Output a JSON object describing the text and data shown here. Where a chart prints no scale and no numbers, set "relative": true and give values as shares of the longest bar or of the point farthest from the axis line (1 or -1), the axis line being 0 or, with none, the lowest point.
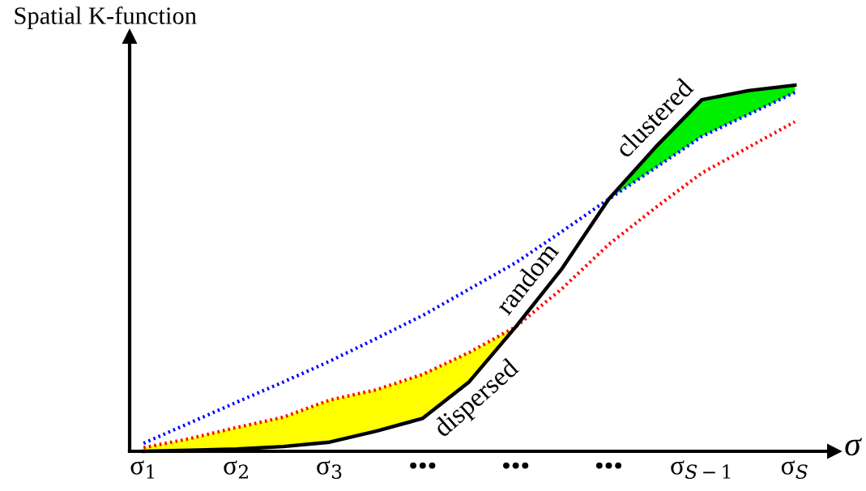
{
  "chart_data": {
    "type": "line",
    "relative": true,
    "ylabel": "Spatial K-function",
    "xlabel": "σ",
    "categories": [
      "σ$_{1}$",
      null,
      "σ$_{2}$",
      null,
      "σ$_{3}$",
      null,
      "•••",
      null,
      "•••",
      null,
      "•••",
      null,
      "σ$_{S−1}$",
      null,
      "σ$_{S}$"
    ],
    "grid": false,
    "legend": false,
    "series": [
      {
        "color": "#0000ff",
        "line_style": "dotted",
        "values": [
          0.022,
          0.078,
          0.134,
          0.189,
          0.246,
          0.308,
          0.371,
          0.443,
          0.515,
          0.601,
          0.689,
          0.774,
          0.86,
          0.92,
          0.98
        ]
      },
      {
        "color": "#ff0000",
        "line_style": "dotted",
        "values": [
          0.01,
          0.035,
          0.065,
          0.093,
          0.14,
          0.168,
          0.21,
          0.27,
          0.34,
          0.445,
          0.565,
          0.665,
          0.76,
          0.83,
          0.9
        ]
      },
      {
        "color": "#000000",
        "line_style": "solid",
        "values": [
          0,
          0.003,
          0.006,
          0.013,
          0.025,
          0.055,
          0.09,
          0.19,
          0.34,
          0.5,
          0.689,
          0.83,
          0.96,
          0.985,
          1.0
        ]
      }
    ],
    "annotations": [
      "clustered",
      "random",
      "dispersed"
    ]
  }
}
